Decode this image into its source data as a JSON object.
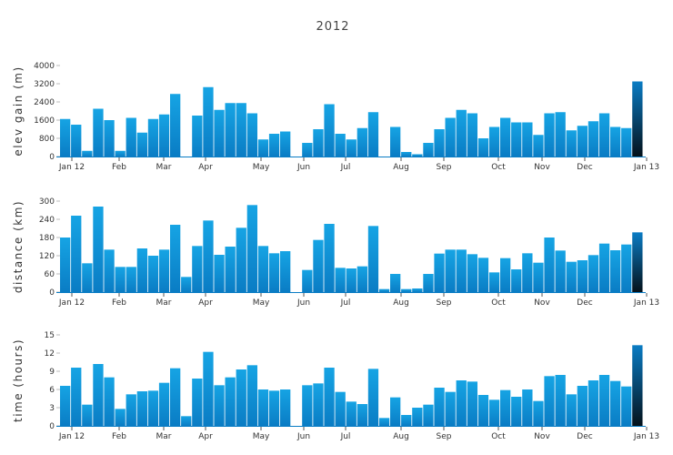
{
  "title": "2012",
  "colors": {
    "bar_top": "#16a4e4",
    "bar_bottom": "#0a7cc4",
    "highlight_bottom": "#04111a",
    "axis": "#0a7cc4"
  },
  "chart_data": [
    {
      "type": "bar",
      "ylabel": "elev gain (m)",
      "ylim": [
        0,
        4000
      ],
      "yticks": [
        "0",
        "800",
        "1600",
        "2400",
        "3200",
        "4000"
      ],
      "values": [
        1650,
        1400,
        250,
        2100,
        1600,
        250,
        1700,
        1050,
        1650,
        1850,
        2750,
        null,
        1800,
        3050,
        2050,
        2350,
        2350,
        1900,
        750,
        1000,
        1100,
        null,
        600,
        1200,
        2300,
        1000,
        750,
        1250,
        1950,
        null,
        1300,
        200,
        100,
        600,
        1200,
        1700,
        2050,
        1900,
        800,
        1300,
        1700,
        1500,
        1500,
        950,
        1900,
        1950,
        1150,
        1350,
        1550,
        1900,
        1300,
        1250,
        3300
      ]
    },
    {
      "type": "bar",
      "ylabel": "distance (km)",
      "ylim": [
        0,
        300
      ],
      "yticks": [
        "0",
        "60",
        "120",
        "180",
        "240",
        "300"
      ],
      "values": [
        180,
        252,
        95,
        282,
        140,
        83,
        83,
        144,
        120,
        140,
        222,
        50,
        152,
        236,
        123,
        150,
        212,
        287,
        152,
        128,
        135,
        null,
        73,
        172,
        225,
        80,
        78,
        85,
        218,
        10,
        60,
        10,
        12,
        60,
        127,
        140,
        140,
        125,
        113,
        65,
        112,
        75,
        128,
        97,
        180,
        137,
        100,
        105,
        122,
        160,
        138,
        157,
        197
      ]
    },
    {
      "type": "bar",
      "ylabel": "time (hours)",
      "ylim": [
        0,
        15
      ],
      "yticks": [
        "0",
        "3",
        "6",
        "9",
        "12",
        "15"
      ],
      "values": [
        6.6,
        9.6,
        3.5,
        10.2,
        8.0,
        2.8,
        5.2,
        5.7,
        5.8,
        7.1,
        9.5,
        1.6,
        7.8,
        12.2,
        6.7,
        8.0,
        9.3,
        10.0,
        6.0,
        5.8,
        6.0,
        null,
        6.7,
        7.0,
        9.6,
        5.6,
        4.0,
        3.6,
        9.4,
        1.3,
        4.7,
        1.8,
        3.0,
        3.5,
        6.3,
        5.6,
        7.5,
        7.3,
        5.1,
        4.3,
        5.9,
        4.8,
        6.0,
        4.1,
        8.2,
        8.4,
        5.2,
        6.6,
        7.5,
        8.4,
        7.4,
        6.5,
        13.3
      ]
    }
  ],
  "x_axis": {
    "tick_labels": [
      "Jan 12",
      "Feb",
      "Mar",
      "Apr",
      "May",
      "Jun",
      "Jul",
      "Aug",
      "Sep",
      "Oct",
      "Nov",
      "Dec",
      "Jan 13"
    ]
  }
}
